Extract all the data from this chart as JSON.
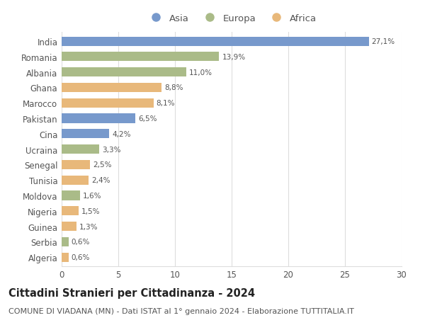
{
  "countries": [
    "India",
    "Romania",
    "Albania",
    "Ghana",
    "Marocco",
    "Pakistan",
    "Cina",
    "Ucraina",
    "Senegal",
    "Tunisia",
    "Moldova",
    "Nigeria",
    "Guinea",
    "Serbia",
    "Algeria"
  ],
  "values": [
    27.1,
    13.9,
    11.0,
    8.8,
    8.1,
    6.5,
    4.2,
    3.3,
    2.5,
    2.4,
    1.6,
    1.5,
    1.3,
    0.6,
    0.6
  ],
  "labels": [
    "27,1%",
    "13,9%",
    "11,0%",
    "8,8%",
    "8,1%",
    "6,5%",
    "4,2%",
    "3,3%",
    "2,5%",
    "2,4%",
    "1,6%",
    "1,5%",
    "1,3%",
    "0,6%",
    "0,6%"
  ],
  "continents": [
    "Asia",
    "Europa",
    "Europa",
    "Africa",
    "Africa",
    "Asia",
    "Asia",
    "Europa",
    "Africa",
    "Africa",
    "Europa",
    "Africa",
    "Africa",
    "Europa",
    "Africa"
  ],
  "colors": {
    "Asia": "#7799cc",
    "Europa": "#aabb88",
    "Africa": "#e8b87a"
  },
  "xlim": [
    0,
    30
  ],
  "xticks": [
    0,
    5,
    10,
    15,
    20,
    25,
    30
  ],
  "title": "Cittadini Stranieri per Cittadinanza - 2024",
  "subtitle": "COMUNE DI VIADANA (MN) - Dati ISTAT al 1° gennaio 2024 - Elaborazione TUTTITALIA.IT",
  "background_color": "#ffffff",
  "bar_height": 0.6,
  "label_fontsize": 7.5,
  "title_fontsize": 10.5,
  "subtitle_fontsize": 8.0,
  "ytick_fontsize": 8.5,
  "xtick_fontsize": 8.5,
  "legend_fontsize": 9.5,
  "grid_color": "#dddddd",
  "text_color": "#555555"
}
